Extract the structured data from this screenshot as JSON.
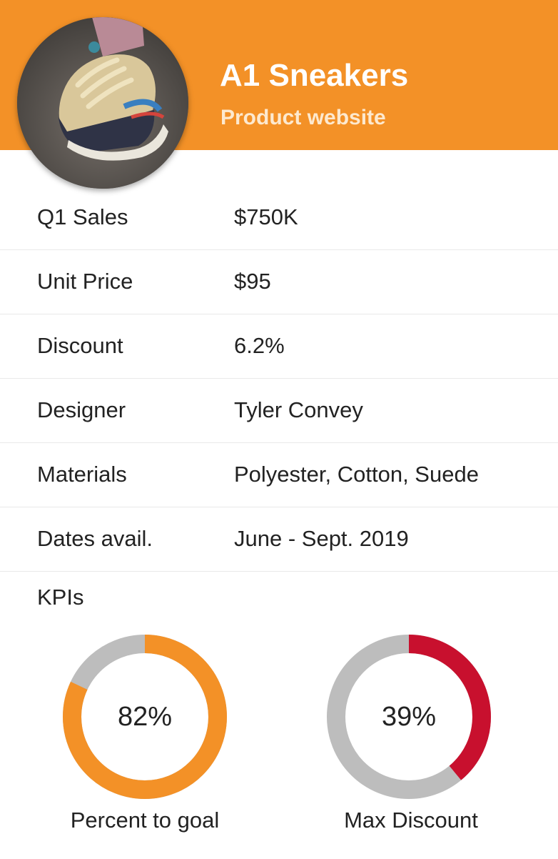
{
  "header": {
    "title": "A1 Sneakers",
    "subtitle": "Product website",
    "color": "#f39127"
  },
  "avatar": {
    "icon": "sneaker-photo"
  },
  "details": [
    {
      "label": "Q1 Sales",
      "value": "$750K"
    },
    {
      "label": "Unit Price",
      "value": "$95"
    },
    {
      "label": "Discount",
      "value": "6.2%"
    },
    {
      "label": "Designer",
      "value": "Tyler Convey"
    },
    {
      "label": "Materials",
      "value": "Polyester, Cotton, Suede"
    },
    {
      "label": "Dates avail.",
      "value": "June - Sept. 2019"
    }
  ],
  "kpis": {
    "title": "KPIs",
    "items": [
      {
        "label": "82%",
        "caption": "Percent to goal",
        "percent": 82,
        "color": "#f39127",
        "track_color": "#bdbdbd"
      },
      {
        "label": "39%",
        "caption": "Max Discount",
        "percent": 39,
        "color": "#c8102e",
        "track_color": "#bdbdbd"
      }
    ]
  }
}
